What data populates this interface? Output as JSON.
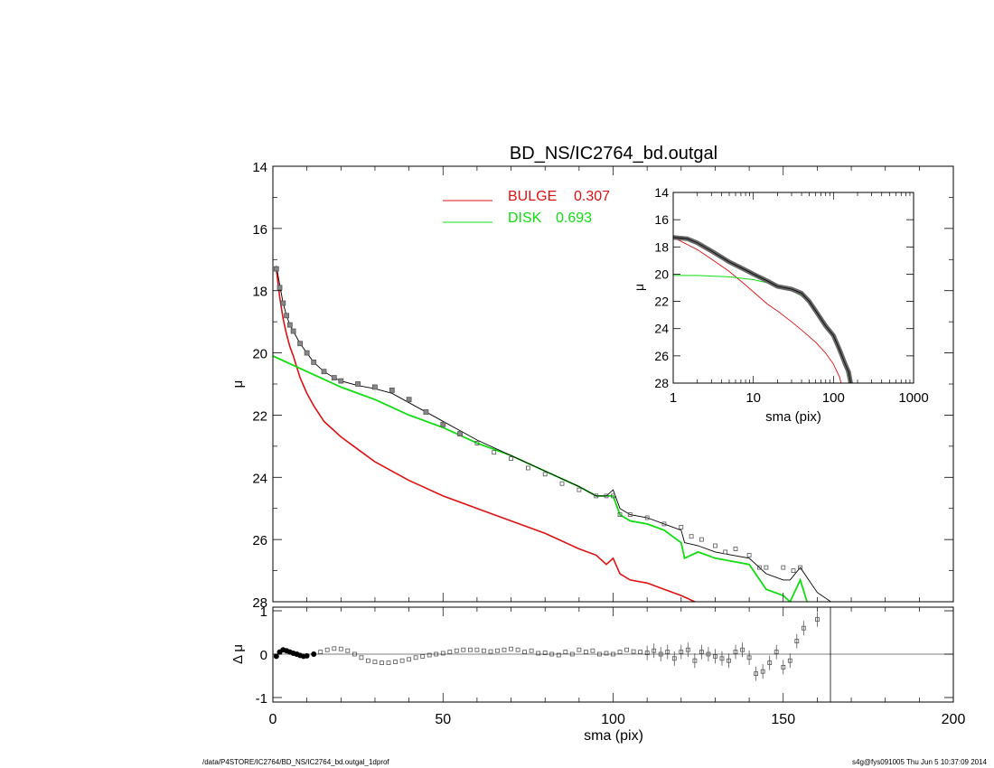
{
  "footer": {
    "left": "/data/P4STORE/IC2764/BD_NS/IC2764_bd.outgal_1dprof",
    "right": "s4g@fys091005  Thu Jun  5 10:37:09 2014"
  },
  "colors": {
    "bulge": "#dd1111",
    "disk": "#11dd11",
    "model": "#000000",
    "data": "#555555"
  },
  "chart_data": [
    {
      "type": "line",
      "title": "BD_NS/IC2764_bd.outgal",
      "xlabel": "",
      "ylabel": "μ",
      "xlim": [
        0,
        200
      ],
      "ylim": [
        28,
        14
      ],
      "y_ticks": [
        "14",
        "16",
        "18",
        "20",
        "22",
        "24",
        "26",
        "28"
      ],
      "legend": [
        {
          "label": "BULGE",
          "value": "0.307"
        },
        {
          "label": "DISK",
          "value": "0.693"
        }
      ],
      "legend_position": "top-center",
      "series": [
        {
          "name": "BULGE",
          "x": [
            1,
            2,
            3,
            4,
            5,
            6,
            8,
            10,
            12,
            15,
            18,
            20,
            25,
            30,
            35,
            40,
            50,
            60,
            70,
            80,
            90,
            95,
            98,
            100,
            102,
            105,
            110,
            115,
            120,
            124
          ],
          "y": [
            17.3,
            18.2,
            18.9,
            19.4,
            19.8,
            20.1,
            20.8,
            21.3,
            21.7,
            22.2,
            22.5,
            22.7,
            23.1,
            23.5,
            23.8,
            24.1,
            24.6,
            25.0,
            25.4,
            25.8,
            26.3,
            26.5,
            26.8,
            26.6,
            27.1,
            27.3,
            27.4,
            27.6,
            27.8,
            28.0
          ]
        },
        {
          "name": "DISK",
          "x": [
            0,
            10,
            20,
            30,
            40,
            50,
            60,
            70,
            80,
            90,
            95,
            100,
            102,
            105,
            110,
            115,
            120,
            121,
            125,
            130,
            135,
            140,
            145,
            150,
            152,
            155,
            157
          ],
          "y": [
            20.1,
            20.6,
            21.1,
            21.5,
            22.0,
            22.4,
            22.9,
            23.3,
            23.8,
            24.3,
            24.6,
            24.6,
            25.2,
            25.4,
            25.5,
            25.7,
            26.1,
            26.6,
            26.4,
            26.6,
            26.7,
            26.8,
            27.6,
            27.8,
            28.0,
            27.3,
            28.0
          ]
        },
        {
          "name": "",
          "x": [
            1,
            2,
            3,
            4,
            5,
            6,
            8,
            10,
            12,
            15,
            18,
            20,
            25,
            30,
            35,
            40,
            50,
            60,
            70,
            80,
            90,
            95,
            98,
            100,
            102,
            105,
            110,
            115,
            120,
            121,
            125,
            130,
            135,
            140,
            145,
            150,
            152,
            155,
            160,
            164
          ],
          "y": [
            17.2,
            17.8,
            18.4,
            18.8,
            19.1,
            19.3,
            19.7,
            20.0,
            20.3,
            20.6,
            20.8,
            20.9,
            21.05,
            21.15,
            21.3,
            21.6,
            22.2,
            22.8,
            23.3,
            23.8,
            24.3,
            24.6,
            24.6,
            24.4,
            25.0,
            25.2,
            25.3,
            25.5,
            25.7,
            26.1,
            26.2,
            26.4,
            26.5,
            26.6,
            27.1,
            27.3,
            27.3,
            26.9,
            27.7,
            28.0
          ]
        },
        {
          "name": "",
          "x": [
            1,
            2,
            3,
            4,
            5,
            6,
            8,
            10,
            12,
            15,
            18,
            20,
            25,
            30,
            35,
            40,
            45,
            50,
            55,
            60,
            65,
            70,
            75,
            80,
            85,
            90,
            95,
            98,
            100,
            102,
            105,
            110,
            115,
            120,
            123,
            126,
            130,
            133,
            136,
            140,
            143,
            145,
            150,
            153,
            155
          ],
          "y": [
            17.3,
            17.9,
            18.4,
            18.8,
            19.1,
            19.3,
            19.7,
            20.0,
            20.3,
            20.6,
            20.8,
            20.9,
            21.0,
            21.1,
            21.2,
            21.5,
            21.9,
            22.3,
            22.6,
            22.9,
            23.2,
            23.4,
            23.7,
            23.9,
            24.2,
            24.4,
            24.6,
            24.6,
            24.6,
            25.2,
            25.2,
            25.3,
            25.5,
            25.6,
            25.9,
            26.0,
            26.2,
            26.4,
            26.3,
            26.5,
            26.9,
            26.9,
            26.9,
            27.0,
            26.9
          ]
        }
      ]
    },
    {
      "type": "scatter",
      "xlabel": "sma (pix)",
      "ylabel": "Δ μ",
      "xlim": [
        0,
        200
      ],
      "ylim": [
        -1,
        1
      ],
      "x_ticks": [
        "0",
        "50",
        "100",
        "150",
        "200"
      ],
      "y_ticks": [
        "1",
        "0",
        "-1"
      ],
      "x": [
        1,
        2,
        3,
        4,
        5,
        6,
        7,
        8,
        9,
        10,
        12,
        14,
        16,
        18,
        20,
        22,
        24,
        26,
        28,
        30,
        32,
        34,
        36,
        38,
        40,
        42,
        44,
        46,
        48,
        50,
        52,
        54,
        56,
        58,
        60,
        62,
        64,
        66,
        68,
        70,
        72,
        74,
        76,
        78,
        80,
        82,
        84,
        86,
        88,
        90,
        92,
        94,
        96,
        98,
        100,
        102,
        104,
        106,
        108,
        110,
        112,
        114,
        116,
        118,
        120,
        122,
        124,
        126,
        128,
        130,
        132,
        134,
        136,
        138,
        140,
        142,
        144,
        146,
        148,
        150,
        152,
        154,
        156,
        160
      ],
      "y": [
        -0.05,
        0.05,
        0.1,
        0.08,
        0.05,
        0.02,
        0.0,
        -0.03,
        -0.05,
        -0.04,
        0.0,
        0.05,
        0.1,
        0.13,
        0.12,
        0.08,
        0.0,
        -0.08,
        -0.15,
        -0.18,
        -0.2,
        -0.2,
        -0.18,
        -0.15,
        -0.12,
        -0.08,
        -0.05,
        -0.02,
        0.0,
        0.02,
        0.05,
        0.08,
        0.1,
        0.1,
        0.1,
        0.08,
        0.06,
        0.08,
        0.1,
        0.12,
        0.1,
        0.05,
        0.08,
        0.02,
        0.03,
        0.0,
        -0.02,
        0.05,
        0.0,
        0.1,
        0.05,
        0.08,
        0.0,
        0.02,
        0.0,
        0.05,
        0.1,
        0.06,
        0.05,
        0.03,
        0.08,
        0.0,
        0.05,
        -0.1,
        0.05,
        0.1,
        -0.15,
        0.05,
        0.0,
        -0.05,
        -0.1,
        -0.15,
        0.05,
        0.1,
        -0.08,
        -0.45,
        -0.4,
        -0.2,
        0.05,
        -0.3,
        -0.15,
        0.3,
        0.6,
        0.8
      ]
    },
    {
      "type": "line",
      "xlabel": "sma (pix)",
      "ylabel": "μ",
      "x_scale": "log",
      "xlim": [
        1,
        1000
      ],
      "ylim": [
        28,
        14
      ],
      "x_ticks": [
        "1",
        "10",
        "100",
        "1000"
      ],
      "y_ticks": [
        "14",
        "16",
        "18",
        "20",
        "22",
        "24",
        "26",
        "28"
      ],
      "series": [
        {
          "name": "BULGE",
          "x": [
            1,
            2,
            3,
            5,
            8,
            10,
            15,
            20,
            30,
            40,
            60,
            80,
            100,
            120,
            124
          ],
          "y": [
            17.3,
            18.2,
            18.9,
            19.8,
            20.8,
            21.3,
            22.2,
            22.7,
            23.5,
            24.1,
            25.0,
            25.8,
            26.6,
            27.6,
            28.0
          ]
        },
        {
          "name": "DISK",
          "x": [
            1,
            2,
            5,
            10,
            20,
            30,
            40,
            60,
            80,
            100,
            120,
            140,
            157
          ],
          "y": [
            20.1,
            20.1,
            20.2,
            20.4,
            20.8,
            21.2,
            21.6,
            22.5,
            23.6,
            24.6,
            25.8,
            26.8,
            28.0
          ]
        },
        {
          "name": "",
          "x": [
            1,
            1.5,
            2,
            3,
            5,
            8,
            10,
            15,
            20,
            30,
            40,
            50,
            60,
            80,
            100,
            120,
            140,
            155,
            164
          ],
          "y": [
            17.3,
            17.4,
            17.7,
            18.3,
            19.1,
            19.7,
            20.0,
            20.5,
            20.9,
            21.1,
            21.4,
            22.0,
            22.7,
            23.8,
            24.5,
            25.6,
            26.6,
            27.2,
            28.0
          ]
        }
      ]
    }
  ]
}
